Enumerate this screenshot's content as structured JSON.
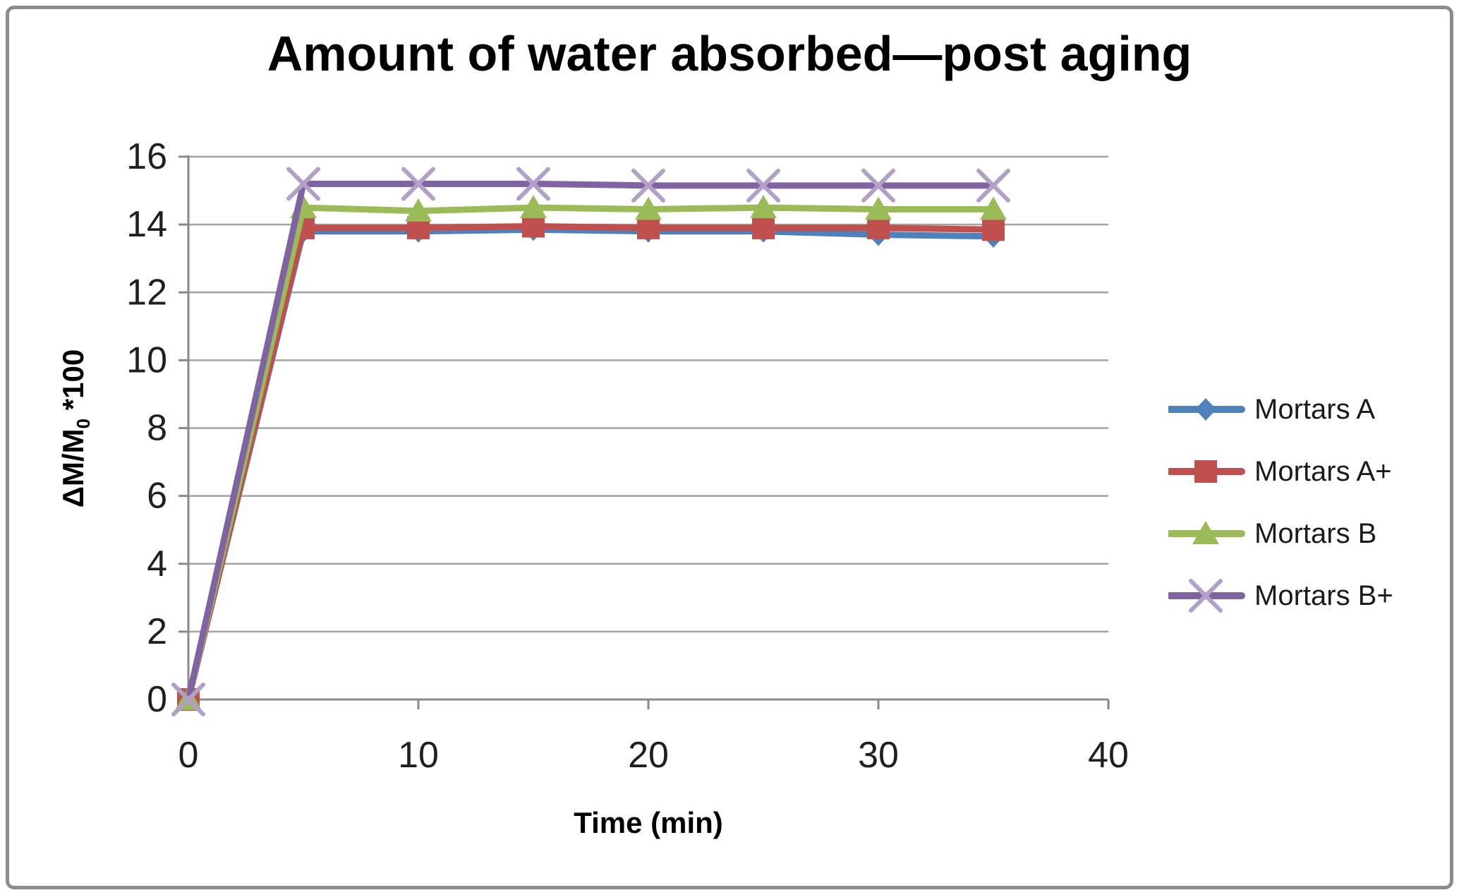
{
  "chart_data": {
    "type": "line",
    "title": "Amount of water absorbed—post aging",
    "xlabel": "Time (min)",
    "ylabel": "ΔM/M₀ *100",
    "ylabel_parts": {
      "main": "ΔM/M",
      "sub": "0",
      "suffix": " *100"
    },
    "x": [
      0,
      5,
      10,
      15,
      20,
      25,
      30,
      35
    ],
    "xlim": [
      0,
      40
    ],
    "ylim": [
      0,
      16
    ],
    "xticks": [
      0,
      10,
      20,
      30,
      40
    ],
    "yticks": [
      0,
      2,
      4,
      6,
      8,
      10,
      12,
      14,
      16
    ],
    "grid": true,
    "legend_position": "right",
    "series": [
      {
        "name": "Mortars A",
        "color": "#4F81BD",
        "marker": "diamond",
        "marker_color": "#4F81BD",
        "values": [
          0,
          13.8,
          13.8,
          13.85,
          13.8,
          13.8,
          13.7,
          13.65
        ]
      },
      {
        "name": "Mortars A+",
        "color": "#C0504D",
        "marker": "square",
        "marker_color": "#C0504D",
        "values": [
          0,
          13.9,
          13.9,
          13.95,
          13.9,
          13.9,
          13.9,
          13.85
        ]
      },
      {
        "name": "Mortars B",
        "color": "#9BBB59",
        "marker": "triangle",
        "marker_color": "#9BBB59",
        "values": [
          0,
          14.5,
          14.4,
          14.5,
          14.45,
          14.5,
          14.45,
          14.45
        ]
      },
      {
        "name": "Mortars B+",
        "color": "#8064A2",
        "marker": "x",
        "marker_color": "#B2A1C7",
        "values": [
          0,
          15.2,
          15.2,
          15.2,
          15.15,
          15.15,
          15.15,
          15.15
        ]
      }
    ],
    "style": {
      "grid_color": "#A3A3A3",
      "axis_color": "#8A8A8A",
      "tick_label_color": "#1F1F1F",
      "frame_border_color": "#8C8C8C",
      "background": "#FFFFFF"
    }
  }
}
